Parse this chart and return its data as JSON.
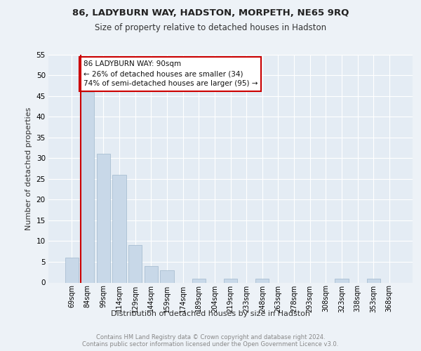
{
  "title1": "86, LADYBURN WAY, HADSTON, MORPETH, NE65 9RQ",
  "title2": "Size of property relative to detached houses in Hadston",
  "xlabel": "Distribution of detached houses by size in Hadston",
  "ylabel": "Number of detached properties",
  "categories": [
    "69sqm",
    "84sqm",
    "99sqm",
    "114sqm",
    "129sqm",
    "144sqm",
    "159sqm",
    "174sqm",
    "189sqm",
    "204sqm",
    "219sqm",
    "233sqm",
    "248sqm",
    "263sqm",
    "278sqm",
    "293sqm",
    "308sqm",
    "323sqm",
    "338sqm",
    "353sqm",
    "368sqm"
  ],
  "values": [
    6,
    46,
    31,
    26,
    9,
    4,
    3,
    0,
    1,
    0,
    1,
    0,
    1,
    0,
    0,
    0,
    0,
    1,
    0,
    1,
    0
  ],
  "bar_color": "#c8d8e8",
  "bar_edge_color": "#a0b8cc",
  "subject_line_index": 1,
  "subject_line_color": "#cc0000",
  "annotation_line1": "86 LADYBURN WAY: 90sqm",
  "annotation_line2": "← 26% of detached houses are smaller (34)",
  "annotation_line3": "74% of semi-detached houses are larger (95) →",
  "annotation_box_color": "#ffffff",
  "annotation_box_edge_color": "#cc0000",
  "ylim": [
    0,
    55
  ],
  "yticks": [
    0,
    5,
    10,
    15,
    20,
    25,
    30,
    35,
    40,
    45,
    50,
    55
  ],
  "footer_text": "Contains HM Land Registry data © Crown copyright and database right 2024.\nContains public sector information licensed under the Open Government Licence v3.0.",
  "bg_color": "#edf2f7",
  "plot_bg_color": "#e4ecf4",
  "grid_color": "#ffffff"
}
